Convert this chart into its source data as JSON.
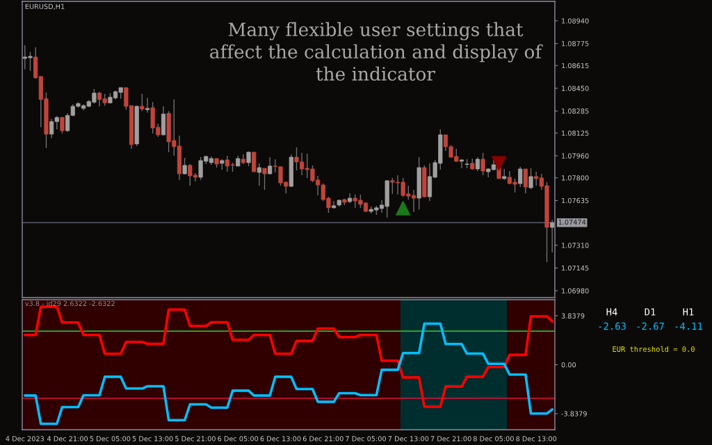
{
  "chart_data": [
    {
      "type": "candlestick",
      "title": "EURUSD,H1",
      "categories": [
        null,
        null,
        null,
        null,
        null,
        null,
        null,
        null,
        null,
        null,
        null,
        null,
        null,
        null,
        null,
        null,
        null,
        null,
        null,
        null,
        null,
        null,
        null,
        null,
        null,
        null,
        null,
        null,
        null,
        null,
        null,
        null,
        null,
        null,
        null,
        null,
        null,
        null,
        null,
        null,
        null,
        null,
        null,
        null,
        null,
        null,
        null,
        null,
        null,
        null,
        null,
        null,
        null,
        null,
        null,
        null,
        null,
        null,
        null,
        null,
        null,
        null,
        null,
        null,
        null,
        null,
        null,
        null,
        null,
        null,
        null,
        null,
        null,
        null,
        null,
        null,
        null,
        null,
        null,
        null,
        null,
        null,
        null,
        null,
        null,
        null,
        null,
        null,
        null,
        null,
        null,
        null,
        null,
        null,
        null,
        null,
        null,
        null,
        null,
        null
      ],
      "ohlc": [
        [
          1.08667,
          1.08763,
          1.08587,
          1.08677
        ],
        [
          1.08672,
          1.08713,
          1.08576,
          1.08682
        ],
        [
          1.08677,
          1.08748,
          1.08521,
          1.08526
        ],
        [
          1.08536,
          1.08536,
          1.08167,
          1.08369
        ],
        [
          1.08374,
          1.0842,
          1.08016,
          1.08117
        ],
        [
          1.08117,
          1.08228,
          1.08087,
          1.08208
        ],
        [
          1.08208,
          1.08248,
          1.08152,
          1.08238
        ],
        [
          1.08238,
          1.08243,
          1.08122,
          1.08142
        ],
        [
          1.08142,
          1.08268,
          1.08132,
          1.08253
        ],
        [
          1.08253,
          1.08334,
          1.08248,
          1.08319
        ],
        [
          1.08319,
          1.08349,
          1.08309,
          1.08339
        ],
        [
          1.08304,
          1.08334,
          1.08289,
          1.08324
        ],
        [
          1.08319,
          1.08364,
          1.08314,
          1.08354
        ],
        [
          1.08349,
          1.08445,
          1.08339,
          1.08415
        ],
        [
          1.08415,
          1.08425,
          1.08319,
          1.08369
        ],
        [
          1.08374,
          1.0841,
          1.08324,
          1.08344
        ],
        [
          1.08344,
          1.08415,
          1.08339,
          1.08385
        ],
        [
          1.0838,
          1.08435,
          1.08369,
          1.08425
        ],
        [
          1.0842,
          1.08455,
          1.08374,
          1.08455
        ],
        [
          1.08455,
          1.08455,
          1.08294,
          1.08319
        ],
        [
          1.08324,
          1.08324,
          1.08011,
          1.08041
        ],
        [
          1.08046,
          1.08324,
          1.08031,
          1.08319
        ],
        [
          1.08319,
          1.0841,
          1.08284,
          1.08299
        ],
        [
          1.08294,
          1.0838,
          1.08273,
          1.08304
        ],
        [
          1.08309,
          1.08349,
          1.08122,
          1.08162
        ],
        [
          1.08167,
          1.08193,
          1.08097,
          1.08112
        ],
        [
          1.08112,
          1.08319,
          1.08107,
          1.08263
        ],
        [
          1.08268,
          1.08284,
          1.07986,
          1.08061
        ],
        [
          1.08071,
          1.08369,
          1.0796,
          1.08026
        ],
        [
          1.08031,
          1.08107,
          1.07784,
          1.07829
        ],
        [
          1.07829,
          1.07945,
          1.07824,
          1.0789
        ],
        [
          1.0789,
          1.079,
          1.07743,
          1.07814
        ],
        [
          1.07819,
          1.07834,
          1.07773,
          1.07804
        ],
        [
          1.07804,
          1.0795,
          1.07784,
          1.07925
        ],
        [
          1.0792,
          1.0796,
          1.079,
          1.07955
        ],
        [
          1.0791,
          1.07955,
          1.07895,
          1.0794
        ],
        [
          1.0794,
          1.0794,
          1.07874,
          1.079
        ],
        [
          1.07905,
          1.07935,
          1.07859,
          1.07925
        ],
        [
          1.0793,
          1.0796,
          1.07844,
          1.07885
        ],
        [
          1.07895,
          1.0791,
          1.07844,
          1.07892
        ],
        [
          1.07885,
          1.0796,
          1.07885,
          1.0794
        ],
        [
          1.07935,
          1.0797,
          1.079,
          1.0791
        ],
        [
          1.0791,
          1.07991,
          1.07885,
          1.07986
        ],
        [
          1.07986,
          1.07986,
          1.07844,
          1.07844
        ],
        [
          1.07839,
          1.07905,
          1.07743,
          1.07874
        ],
        [
          1.07869,
          1.07869,
          1.07713,
          1.07829
        ],
        [
          1.07829,
          1.0795,
          1.07824,
          1.07885
        ],
        [
          1.07885,
          1.07935,
          1.07839,
          1.07882
        ],
        [
          1.0788,
          1.0788,
          1.07743,
          1.07763
        ],
        [
          1.07768,
          1.07773,
          1.07688,
          1.07738
        ],
        [
          1.07738,
          1.0797,
          1.07733,
          1.0795
        ],
        [
          1.0795,
          1.08021,
          1.07854,
          1.07915
        ],
        [
          1.07915,
          1.07981,
          1.07819,
          1.07864
        ],
        [
          1.07869,
          1.07975,
          1.07799,
          1.07859
        ],
        [
          1.07864,
          1.0789,
          1.07768,
          1.07779
        ],
        [
          1.07784,
          1.07814,
          1.07672,
          1.07748
        ],
        [
          1.07748,
          1.07758,
          1.07632,
          1.07642
        ],
        [
          1.07652,
          1.07662,
          1.07546,
          1.07582
        ],
        [
          1.07582,
          1.07632,
          1.07577,
          1.07597
        ],
        [
          1.07602,
          1.07642,
          1.07592,
          1.07637
        ],
        [
          1.07642,
          1.07647,
          1.07602,
          1.07622
        ],
        [
          1.07627,
          1.07688,
          1.07617,
          1.07652
        ],
        [
          1.07652,
          1.07678,
          1.07582,
          1.07632
        ],
        [
          1.07637,
          1.07678,
          1.07582,
          1.07607
        ],
        [
          1.07617,
          1.07622,
          1.07551,
          1.07556
        ],
        [
          1.07556,
          1.07592,
          1.07541,
          1.07571
        ],
        [
          1.07566,
          1.07597,
          1.07531,
          1.07582
        ],
        [
          1.07577,
          1.07637,
          1.07546,
          1.07602
        ],
        [
          1.07592,
          1.07779,
          1.07511,
          1.07779
        ],
        [
          1.07779,
          1.07799,
          1.07683,
          1.07768
        ],
        [
          1.07768,
          1.07819,
          1.07678,
          1.07763
        ],
        [
          1.07768,
          1.07799,
          1.07662,
          1.07672
        ],
        [
          1.07683,
          1.07743,
          1.07642,
          1.07667
        ],
        [
          1.07672,
          1.07713,
          1.07551,
          1.07652
        ],
        [
          1.07652,
          1.0795,
          1.07571,
          1.07874
        ],
        [
          1.07874,
          1.0789,
          1.07657,
          1.07662
        ],
        [
          1.07662,
          1.07905,
          1.07632,
          1.07809
        ],
        [
          1.07804,
          1.0793,
          1.07799,
          1.0791
        ],
        [
          1.07905,
          1.08152,
          1.07859,
          1.08112
        ],
        [
          1.08112,
          1.08112,
          1.07996,
          1.08026
        ],
        [
          1.08026,
          1.08036,
          1.07945,
          1.0795
        ],
        [
          1.07955,
          1.08011,
          1.07915,
          1.0792
        ],
        [
          1.0792,
          1.07935,
          1.07869,
          1.0793
        ],
        [
          1.07897,
          1.07935,
          1.07869,
          1.079
        ],
        [
          1.07905,
          1.0794,
          1.07859,
          1.07864
        ],
        [
          1.07864,
          1.0795,
          1.07849,
          1.07935
        ],
        [
          1.07935,
          1.07981,
          1.07819,
          1.07849
        ],
        [
          1.07844,
          1.07869,
          1.07804,
          1.07864
        ],
        [
          1.07859,
          1.0793,
          1.07854,
          1.07895
        ],
        [
          1.07895,
          1.07895,
          1.07794,
          1.07794
        ],
        [
          1.07794,
          1.07864,
          1.07784,
          1.07809
        ],
        [
          1.07804,
          1.07849,
          1.07753,
          1.07758
        ],
        [
          1.07768,
          1.07794,
          1.07693,
          1.07753
        ],
        [
          1.07758,
          1.0788,
          1.07733,
          1.07864
        ],
        [
          1.07864,
          1.07864,
          1.07688,
          1.07733
        ],
        [
          1.07728,
          1.07869,
          1.07718,
          1.07809
        ],
        [
          1.07809,
          1.07844,
          1.07743,
          1.07794
        ],
        [
          1.07799,
          1.07829,
          1.07713,
          1.07738
        ],
        [
          1.07743,
          1.07768,
          1.07188,
          1.0744
        ],
        [
          1.0744,
          1.07496,
          1.07258,
          1.07474
        ]
      ],
      "series": [
        {
          "type": "scatter",
          "color": "#1a7a1a",
          "marker": "triangle",
          "values": [
            null,
            null,
            null,
            null,
            null,
            null,
            null,
            null,
            null,
            null,
            null,
            null,
            null,
            null,
            null,
            null,
            null,
            null,
            null,
            null,
            null,
            null,
            null,
            null,
            null,
            null,
            null,
            null,
            null,
            null,
            null,
            null,
            null,
            null,
            null,
            null,
            null,
            null,
            null,
            null,
            null,
            null,
            null,
            null,
            null,
            null,
            null,
            null,
            null,
            null,
            null,
            null,
            null,
            null,
            null,
            null,
            null,
            null,
            null,
            null,
            null,
            null,
            null,
            null,
            null,
            null,
            null,
            null,
            null,
            null,
            null,
            1.0758,
            null,
            null,
            null,
            null,
            null,
            null,
            null,
            null,
            null,
            null,
            null,
            null,
            null,
            null,
            null,
            null,
            null,
            null,
            null,
            null,
            null,
            null,
            null,
            null,
            null,
            null,
            null,
            null
          ]
        },
        {
          "type": "scatter",
          "color": "#8b0000",
          "marker": "triangle",
          "values": [
            null,
            null,
            null,
            null,
            null,
            null,
            null,
            null,
            null,
            null,
            null,
            null,
            null,
            null,
            null,
            null,
            null,
            null,
            null,
            null,
            null,
            null,
            null,
            null,
            null,
            null,
            null,
            null,
            null,
            null,
            null,
            null,
            null,
            null,
            null,
            null,
            null,
            null,
            null,
            null,
            null,
            null,
            null,
            null,
            null,
            null,
            null,
            null,
            null,
            null,
            null,
            null,
            null,
            null,
            null,
            null,
            null,
            null,
            null,
            null,
            null,
            null,
            null,
            null,
            null,
            null,
            null,
            null,
            null,
            null,
            null,
            null,
            null,
            null,
            null,
            null,
            null,
            null,
            null,
            null,
            null,
            null,
            null,
            null,
            null,
            null,
            null,
            null,
            null,
            1.07905,
            null,
            null,
            null,
            null,
            null,
            null,
            null,
            null,
            null,
            null
          ]
        }
      ],
      "ylim": [
        1.0693,
        1.09081
      ],
      "yticks": [
        {
          "value": 1.0894,
          "label": "1.08940"
        },
        {
          "value": 1.08775,
          "label": "1.08775"
        },
        {
          "value": 1.08615,
          "label": "1.08615"
        },
        {
          "value": 1.0845,
          "label": "1.08450"
        },
        {
          "value": 1.08285,
          "label": "1.08285"
        },
        {
          "value": 1.08125,
          "label": "1.08125"
        },
        {
          "value": 1.0796,
          "label": "1.07960"
        },
        {
          "value": 1.078,
          "label": "1.07800"
        },
        {
          "value": 1.07635,
          "label": "1.07635"
        },
        {
          "value": 1.0731,
          "label": "1.07310"
        },
        {
          "value": 1.07145,
          "label": "1.07145"
        },
        {
          "value": 1.0698,
          "label": "1.06980"
        }
      ],
      "ref_lines": [
        {
          "axis": "y",
          "value": 1.07474,
          "label": "1.07474",
          "color": "#5a5a70"
        }
      ],
      "annotations": [
        "Many flexible user settings that\naffect the calculation and display of\nthe indicator"
      ],
      "tick_labels": "y",
      "grid": false,
      "legend": false
    },
    {
      "type": "line",
      "title": "v3.8 - id29 2.6322 -2.6322",
      "categories": [
        "4 Dec 2023",
        null,
        null,
        null,
        null,
        null,
        null,
        null,
        "4 Dec 21:00",
        null,
        null,
        null,
        null,
        null,
        null,
        null,
        "5 Dec 05:00",
        null,
        null,
        null,
        null,
        null,
        null,
        null,
        "5 Dec 13:00",
        null,
        null,
        null,
        null,
        null,
        null,
        null,
        "5 Dec 21:00",
        null,
        null,
        null,
        null,
        null,
        null,
        null,
        "6 Dec 05:00",
        null,
        null,
        null,
        null,
        null,
        null,
        null,
        "6 Dec 13:00",
        null,
        null,
        null,
        null,
        null,
        null,
        null,
        "6 Dec 21:00",
        null,
        null,
        null,
        null,
        null,
        null,
        null,
        "7 Dec 05:00",
        null,
        null,
        null,
        null,
        null,
        null,
        null,
        "7 Dec 13:00",
        null,
        null,
        null,
        null,
        null,
        null,
        null,
        "7 Dec 21:00",
        null,
        null,
        null,
        null,
        null,
        null,
        null,
        "8 Dec 05:00",
        null,
        null,
        null,
        null,
        null,
        null,
        null,
        "8 Dec 13:00",
        null,
        null,
        null
      ],
      "series": [
        {
          "color": "#ff0000",
          "values": [
            2.33,
            2.33,
            2.33,
            4.55,
            4.55,
            4.55,
            4.55,
            3.31,
            3.31,
            3.31,
            3.31,
            2.33,
            2.33,
            2.33,
            2.33,
            0.86,
            0.86,
            0.86,
            0.86,
            1.79,
            1.79,
            1.79,
            1.79,
            1.64,
            1.64,
            1.64,
            1.64,
            4.32,
            4.32,
            4.32,
            4.32,
            3.04,
            3.04,
            3.04,
            3.04,
            3.33,
            3.33,
            3.33,
            3.33,
            1.95,
            1.95,
            1.95,
            1.95,
            2.33,
            2.33,
            2.33,
            2.33,
            0.86,
            0.86,
            0.86,
            0.86,
            1.86,
            1.86,
            1.86,
            1.86,
            2.84,
            2.84,
            2.84,
            2.84,
            2.17,
            2.17,
            2.17,
            2.17,
            2.33,
            2.33,
            2.33,
            2.33,
            0.31,
            0.31,
            0.31,
            0.31,
            -1.0,
            -1.0,
            -1.0,
            -1.0,
            -3.3,
            -3.3,
            -3.3,
            -3.3,
            -1.71,
            -1.71,
            -1.71,
            -1.71,
            -0.95,
            -0.95,
            -0.95,
            -0.95,
            -0.18,
            -0.18,
            -0.18,
            -0.18,
            0.77,
            0.77,
            0.77,
            0.77,
            3.79,
            3.79,
            3.79,
            3.79,
            3.4
          ]
        },
        {
          "color": "#00bfff",
          "values": [
            -2.42,
            -2.42,
            -2.42,
            -4.64,
            -4.64,
            -4.64,
            -4.64,
            -3.33,
            -3.33,
            -3.33,
            -3.33,
            -2.4,
            -2.4,
            -2.4,
            -2.4,
            -0.95,
            -0.95,
            -0.95,
            -0.95,
            -1.87,
            -1.87,
            -1.87,
            -1.87,
            -1.69,
            -1.69,
            -1.69,
            -1.69,
            -4.35,
            -4.35,
            -4.35,
            -4.35,
            -3.11,
            -3.11,
            -3.11,
            -3.11,
            -3.37,
            -3.37,
            -3.37,
            -3.37,
            -2.04,
            -2.04,
            -2.04,
            -2.04,
            -2.42,
            -2.42,
            -2.42,
            -2.42,
            -0.95,
            -0.95,
            -0.95,
            -0.95,
            -1.91,
            -1.91,
            -1.91,
            -1.91,
            -2.91,
            -2.91,
            -2.91,
            -2.91,
            -2.24,
            -2.24,
            -2.24,
            -2.24,
            -2.39,
            -2.39,
            -2.39,
            -2.39,
            -0.4,
            -0.4,
            -0.4,
            -0.4,
            0.91,
            0.91,
            0.91,
            0.91,
            3.22,
            3.22,
            3.22,
            3.22,
            1.62,
            1.62,
            1.62,
            1.62,
            0.87,
            0.87,
            0.87,
            0.87,
            0.07,
            0.07,
            0.07,
            0.07,
            -0.78,
            -0.78,
            -0.78,
            -0.78,
            -3.83,
            -3.83,
            -3.83,
            -3.83,
            -3.51
          ]
        }
      ],
      "ylim": [
        -5.1,
        5.1
      ],
      "yticks": [
        3.8379,
        {
          "value": 0,
          "label": "0.00"
        },
        -3.8379
      ],
      "ref_lines": [
        {
          "axis": "y",
          "value": 2.6322,
          "color": "#32cd32"
        },
        {
          "axis": "y",
          "value": -2.6322,
          "color": "#dc143c"
        }
      ],
      "annotations": [
        "H4",
        "D1",
        "H1",
        "-2.63",
        "-2.67",
        "-4.11",
        "EUR threshold = 0.0"
      ],
      "grid": false,
      "legend": false
    }
  ]
}
